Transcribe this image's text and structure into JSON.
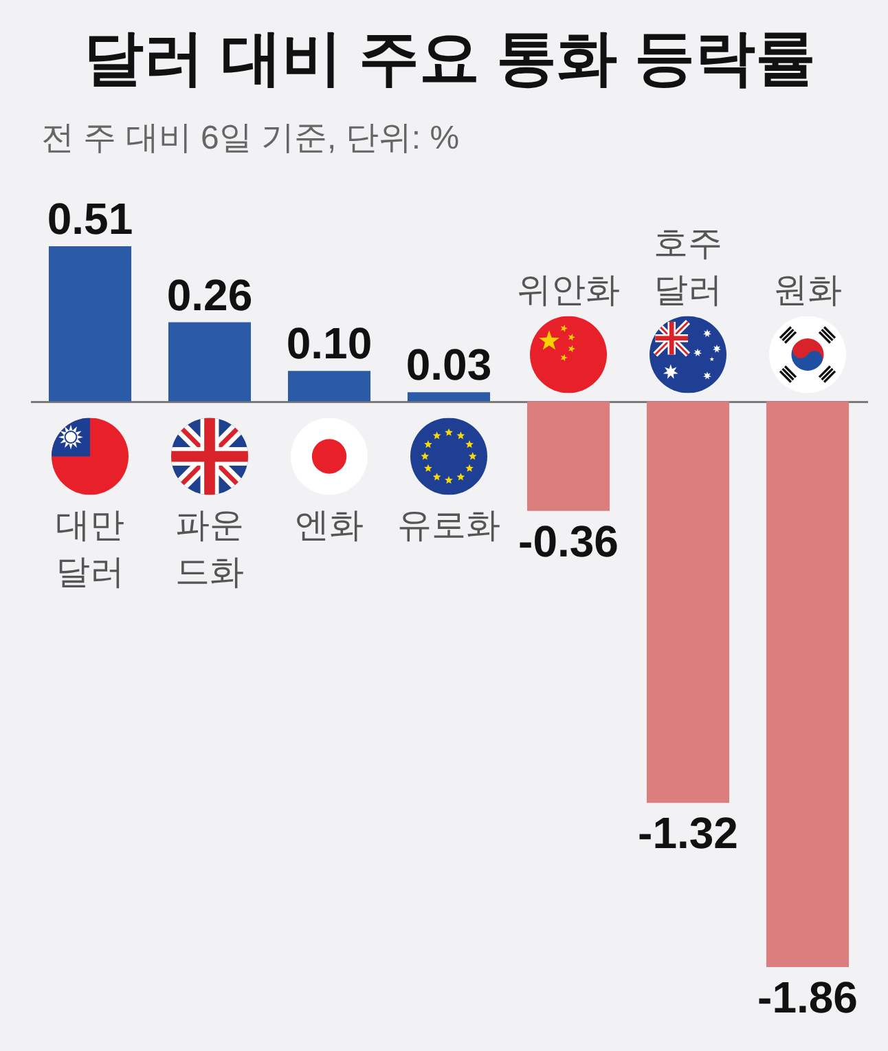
{
  "chart_data": {
    "type": "bar",
    "title": "달러 대비 주요 통화 등락률",
    "subtitle": "전 주 대비 6일 기준, 단위: %",
    "categories": [
      "대만\n달러",
      "파운\n드화",
      "엔화",
      "유로화",
      "위안화",
      "호주\n달러",
      "원화"
    ],
    "values": [
      0.51,
      0.26,
      0.1,
      0.03,
      -0.36,
      -1.32,
      -1.86
    ],
    "colors": [
      "#2b5ba6",
      "#2b5ba6",
      "#2b5ba6",
      "#2b5ba6",
      "#dc7e7e",
      "#dc7e7e",
      "#dc7e7e"
    ],
    "value_labels": [
      "0.51",
      "0.26",
      "0.10",
      "0.03",
      "-0.36",
      "-1.32",
      "-1.86"
    ],
    "ylim": [
      -1.86,
      0.51
    ],
    "tick_labels": "x"
  }
}
